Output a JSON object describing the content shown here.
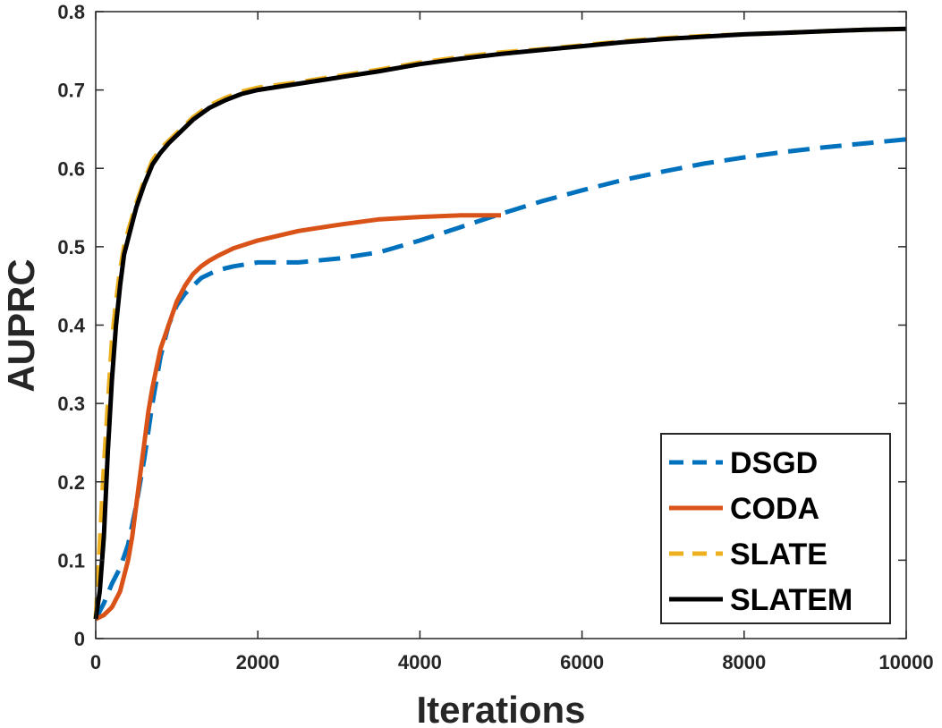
{
  "chart_data": {
    "type": "line",
    "title": "",
    "xlabel": "Iterations",
    "ylabel": "AUPRC",
    "xlim": [
      0,
      10000
    ],
    "ylim": [
      0,
      0.8
    ],
    "xticks": [
      0,
      2000,
      4000,
      6000,
      8000,
      10000
    ],
    "yticks": [
      0,
      0.1,
      0.2,
      0.3,
      0.4,
      0.5,
      0.6,
      0.7,
      0.8
    ],
    "xtick_labels": [
      "0",
      "2000",
      "4000",
      "6000",
      "8000",
      "10000"
    ],
    "ytick_labels": [
      "0",
      "0.1",
      "0.2",
      "0.3",
      "0.4",
      "0.5",
      "0.6",
      "0.7",
      "0.8"
    ],
    "grid": false,
    "legend_position": "bottom-right",
    "series": [
      {
        "name": "DSGD",
        "color": "#0072BD",
        "dash": "dashed",
        "x": [
          0,
          100,
          200,
          300,
          400,
          500,
          600,
          700,
          800,
          900,
          1000,
          1100,
          1200,
          1300,
          1400,
          1500,
          1700,
          2000,
          2500,
          3000,
          3500,
          4000,
          4500,
          5000,
          5500,
          6000,
          6500,
          7000,
          7500,
          8000,
          8500,
          9000,
          9500,
          10000
        ],
        "values": [
          0.025,
          0.045,
          0.07,
          0.09,
          0.12,
          0.17,
          0.23,
          0.3,
          0.36,
          0.4,
          0.425,
          0.44,
          0.45,
          0.46,
          0.465,
          0.47,
          0.475,
          0.48,
          0.48,
          0.485,
          0.493,
          0.508,
          0.525,
          0.542,
          0.558,
          0.572,
          0.585,
          0.596,
          0.606,
          0.614,
          0.621,
          0.627,
          0.632,
          0.637
        ]
      },
      {
        "name": "CODA",
        "color": "#D95319",
        "dash": "solid",
        "x": [
          0,
          100,
          200,
          300,
          400,
          450,
          500,
          550,
          600,
          650,
          700,
          750,
          800,
          900,
          1000,
          1100,
          1200,
          1300,
          1400,
          1500,
          1700,
          2000,
          2500,
          3000,
          3500,
          4000,
          4500,
          5000
        ],
        "values": [
          0.025,
          0.03,
          0.04,
          0.06,
          0.1,
          0.13,
          0.17,
          0.21,
          0.25,
          0.29,
          0.32,
          0.345,
          0.37,
          0.4,
          0.43,
          0.45,
          0.465,
          0.475,
          0.482,
          0.488,
          0.498,
          0.508,
          0.52,
          0.528,
          0.535,
          0.538,
          0.54,
          0.54
        ]
      },
      {
        "name": "SLATE",
        "color": "#EDB120",
        "dash": "dashed",
        "x": [
          0,
          50,
          100,
          150,
          200,
          250,
          300,
          350,
          400,
          500,
          600,
          700,
          800,
          900,
          1000,
          1200,
          1400,
          1600,
          1800,
          2000,
          2500,
          3000,
          3500,
          4000,
          4500,
          5000,
          5500,
          6000,
          6500,
          7000,
          7500,
          8000,
          8500,
          9000,
          9500,
          10000
        ],
        "values": [
          0.025,
          0.12,
          0.22,
          0.3,
          0.38,
          0.43,
          0.47,
          0.5,
          0.52,
          0.555,
          0.585,
          0.61,
          0.625,
          0.635,
          0.645,
          0.665,
          0.68,
          0.69,
          0.698,
          0.703,
          0.71,
          0.718,
          0.726,
          0.735,
          0.742,
          0.748,
          0.752,
          0.757,
          0.762,
          0.766,
          0.769,
          0.771,
          0.773,
          0.775,
          0.777,
          0.778
        ]
      },
      {
        "name": "SLATEM",
        "color": "#000000",
        "dash": "solid",
        "x": [
          0,
          50,
          100,
          150,
          200,
          250,
          300,
          350,
          400,
          500,
          600,
          700,
          800,
          900,
          1000,
          1200,
          1400,
          1600,
          1800,
          2000,
          2500,
          3000,
          3500,
          4000,
          4500,
          5000,
          5500,
          6000,
          6500,
          7000,
          7500,
          8000,
          8500,
          9000,
          9500,
          10000
        ],
        "values": [
          0.025,
          0.06,
          0.13,
          0.24,
          0.33,
          0.4,
          0.45,
          0.49,
          0.51,
          0.55,
          0.58,
          0.605,
          0.62,
          0.632,
          0.642,
          0.662,
          0.677,
          0.687,
          0.695,
          0.7,
          0.708,
          0.716,
          0.724,
          0.733,
          0.74,
          0.746,
          0.751,
          0.756,
          0.761,
          0.765,
          0.768,
          0.771,
          0.773,
          0.775,
          0.777,
          0.778
        ]
      }
    ]
  }
}
